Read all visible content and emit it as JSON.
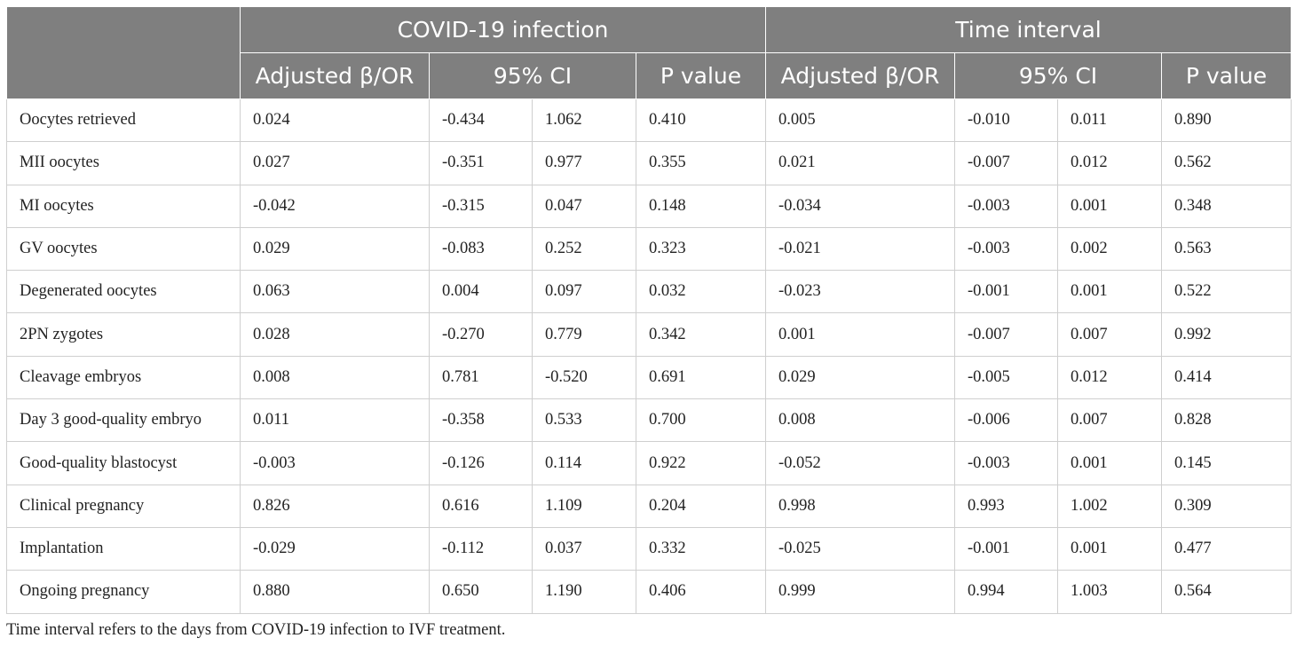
{
  "header": {
    "group1": "COVID-19 infection",
    "group2": "Time interval",
    "subheaders": {
      "beta": "Adjusted β/OR",
      "ci": "95% CI",
      "p": "P value"
    }
  },
  "rows": [
    {
      "label": "Oocytes retrieved",
      "values": [
        "0.024",
        "-0.434",
        "1.062",
        "0.410",
        "0.005",
        "-0.010",
        "0.011",
        "0.890"
      ]
    },
    {
      "label": "MII oocytes",
      "values": [
        "0.027",
        "-0.351",
        "0.977",
        "0.355",
        "0.021",
        "-0.007",
        "0.012",
        "0.562"
      ]
    },
    {
      "label": "MI oocytes",
      "values": [
        "-0.042",
        "-0.315",
        "0.047",
        "0.148",
        "-0.034",
        "-0.003",
        "0.001",
        "0.348"
      ]
    },
    {
      "label": "GV oocytes",
      "values": [
        "0.029",
        "-0.083",
        "0.252",
        "0.323",
        "-0.021",
        "-0.003",
        "0.002",
        "0.563"
      ]
    },
    {
      "label": "Degenerated oocytes",
      "values": [
        "0.063",
        "0.004",
        "0.097",
        "0.032",
        "-0.023",
        "-0.001",
        "0.001",
        "0.522"
      ]
    },
    {
      "label": "2PN zygotes",
      "values": [
        "0.028",
        "-0.270",
        "0.779",
        "0.342",
        "0.001",
        "-0.007",
        "0.007",
        "0.992"
      ]
    },
    {
      "label": "Cleavage embryos",
      "values": [
        "0.008",
        "0.781",
        "-0.520",
        "0.691",
        "0.029",
        "-0.005",
        "0.012",
        "0.414"
      ]
    },
    {
      "label": "Day 3 good-quality embryo",
      "values": [
        "0.011",
        "-0.358",
        "0.533",
        "0.700",
        "0.008",
        "-0.006",
        "0.007",
        "0.828"
      ]
    },
    {
      "label": "Good-quality blastocyst",
      "values": [
        "-0.003",
        "-0.126",
        "0.114",
        "0.922",
        "-0.052",
        "-0.003",
        "0.001",
        "0.145"
      ]
    },
    {
      "label": "Clinical pregnancy",
      "values": [
        "0.826",
        "0.616",
        "1.109",
        "0.204",
        "0.998",
        "0.993",
        "1.002",
        "0.309"
      ]
    },
    {
      "label": "Implantation",
      "values": [
        "-0.029",
        "-0.112",
        "0.037",
        "0.332",
        "-0.025",
        "-0.001",
        "0.001",
        "0.477"
      ]
    },
    {
      "label": "Ongoing pregnancy",
      "values": [
        "0.880",
        "0.650",
        "1.190",
        "0.406",
        "0.999",
        "0.994",
        "1.003",
        "0.564"
      ]
    }
  ],
  "footnote": "Time interval refers to the days from COVID-19 infection to IVF treatment."
}
